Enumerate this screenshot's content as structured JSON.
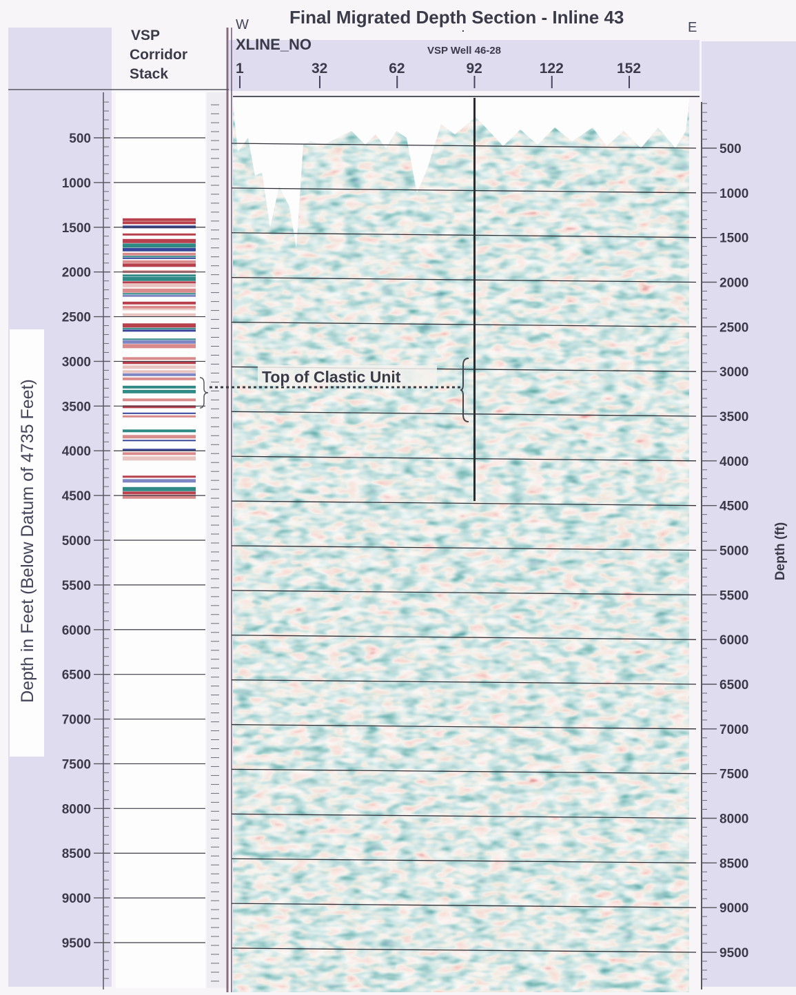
{
  "title": "Final Migrated Depth Section - Inline 43",
  "direction_west": "W",
  "direction_east": "E",
  "xline_label": "XLINE_NO",
  "well_label": "VSP Well 46-28",
  "vsp_label": [
    "VSP",
    "Corridor",
    "Stack"
  ],
  "left_axis_title": "Depth in Feet (Below Datum of 4735 Feet)",
  "right_axis_title": "Depth (ft)",
  "annotation": "Top of Clastic Unit",
  "colors": {
    "background": "#f7f5f8",
    "axis_band": "#e0dcf0",
    "panel": "#fdfdfd",
    "wiggle_red": "#b8404c",
    "wiggle_blue": "#36449a",
    "wiggle_teal": "#2f8a86",
    "grid": "#2e2e36"
  },
  "chart_data": {
    "type": "heatmap",
    "title": "Final Migrated Depth Section - Inline 43",
    "xlabel": "XLINE_NO",
    "ylabel": "Depth in Feet (Below Datum of 4735 Feet)",
    "ylabel_right": "Depth (ft)",
    "x_ticks": [
      "1",
      "32",
      "62",
      "92",
      "122",
      "152"
    ],
    "y_ticks": [
      "500",
      "1000",
      "1500",
      "2000",
      "2500",
      "3000",
      "3500",
      "4000",
      "4500",
      "5000",
      "5500",
      "6000",
      "6500",
      "7000",
      "7500",
      "8000",
      "8500",
      "9000",
      "9500"
    ],
    "ylim": [
      0,
      10000
    ],
    "y_inverted": true,
    "grid": true,
    "well": {
      "name": "VSP Well 46-28",
      "xline": 92,
      "depth_bottom": 4500
    },
    "annotation": {
      "text": "Top of Clastic Unit",
      "depth": 3250
    },
    "vsp_corridor_stack_depth_range": [
      1400,
      4500
    ],
    "colormap": [
      "#36449a",
      "#2f8a86",
      "#f4efe6",
      "#b8404c"
    ]
  }
}
